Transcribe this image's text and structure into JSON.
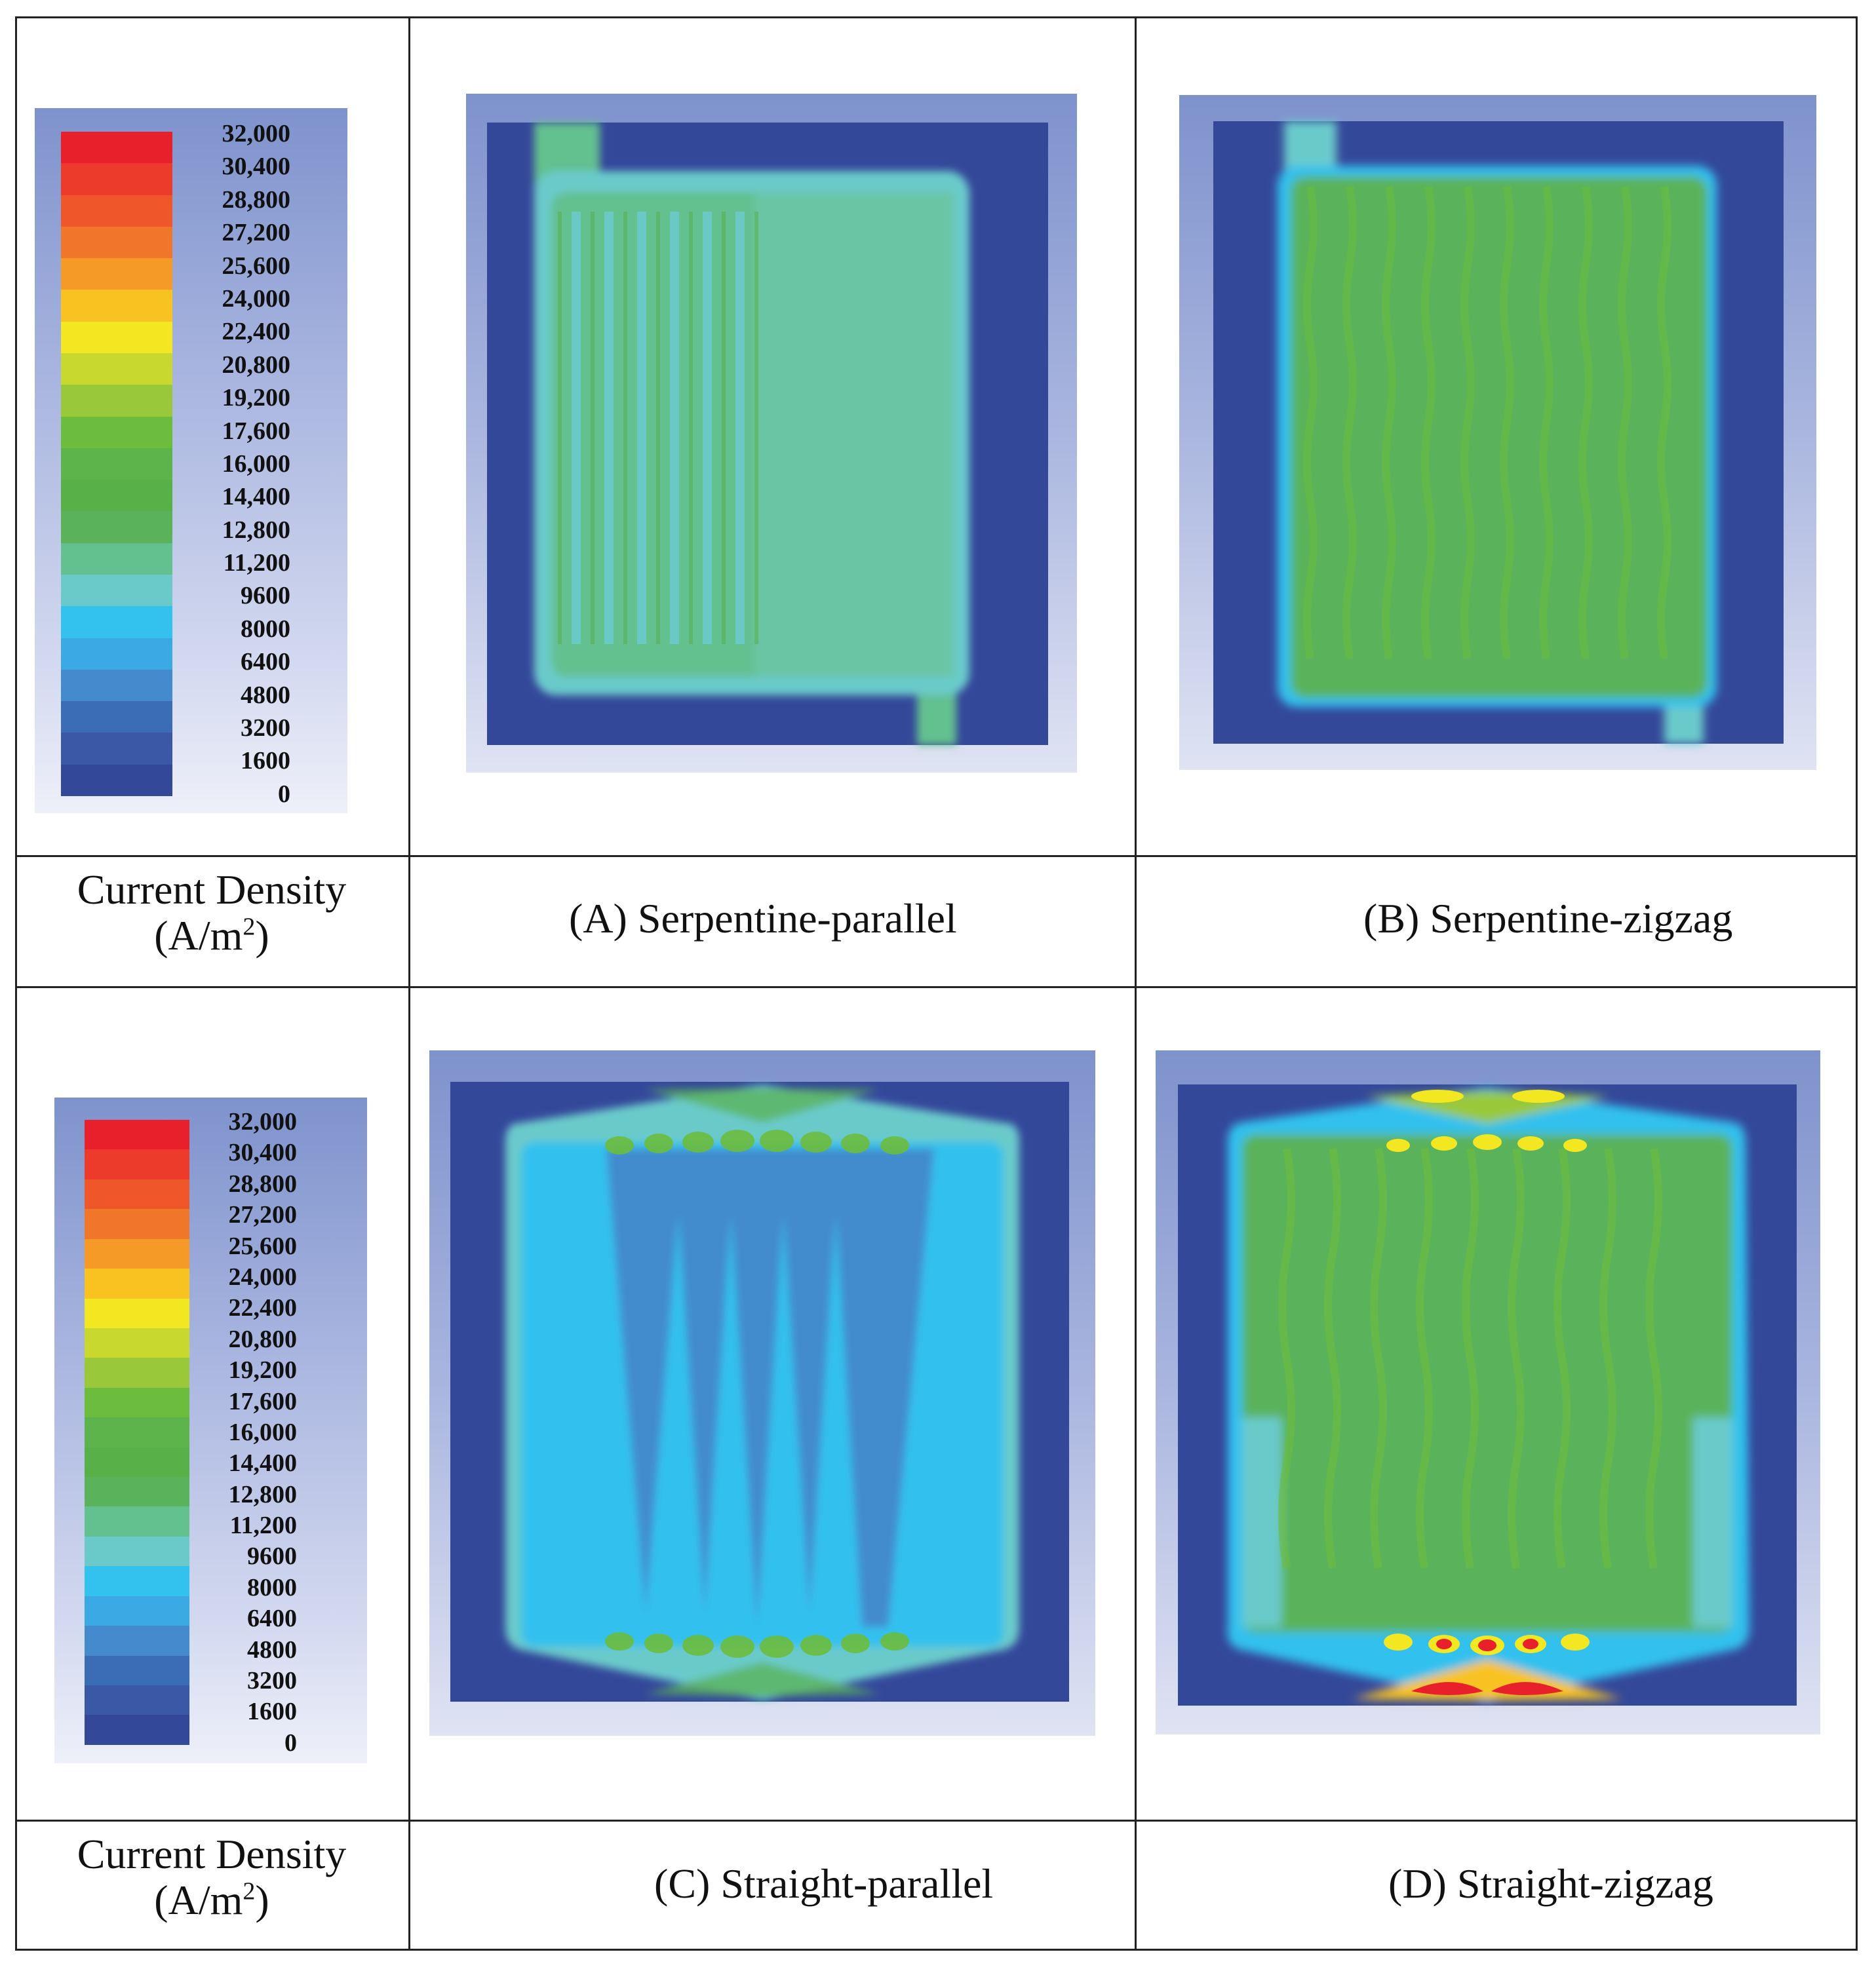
{
  "legend": {
    "title_line1": "Current Density",
    "title_line2": "(A/m",
    "title_sup": "2",
    "title_end": ")",
    "levels": [
      "32,000",
      "30,400",
      "28,800",
      "27,200",
      "25,600",
      "24,000",
      "22,400",
      "20,800",
      "19,200",
      "17,600",
      "16,000",
      "14,400",
      "12,800",
      "11,200",
      "9600",
      "8000",
      "6400",
      "4800",
      "3200",
      "1600",
      "0"
    ],
    "colors": [
      "#e8202b",
      "#ec3b2b",
      "#ef572b",
      "#f0772a",
      "#f59a26",
      "#f8c320",
      "#f3e722",
      "#c8d82f",
      "#99c93a",
      "#6cbd3e",
      "#5db44a",
      "#58b048",
      "#5ab35a",
      "#63c08f",
      "#6acaca",
      "#33c1ee",
      "#3ba9e4",
      "#438bcc",
      "#3a6db6",
      "#3a58a6",
      "#34489a"
    ]
  },
  "panels": {
    "a": {
      "label": "(A)",
      "title": "Serpentine-parallel"
    },
    "b": {
      "label": "(B)",
      "title": "Serpentine-zigzag"
    },
    "c": {
      "label": "(C)",
      "title": "Straight-parallel"
    },
    "d": {
      "label": "(D)",
      "title": "Straight-zigzag"
    }
  }
}
